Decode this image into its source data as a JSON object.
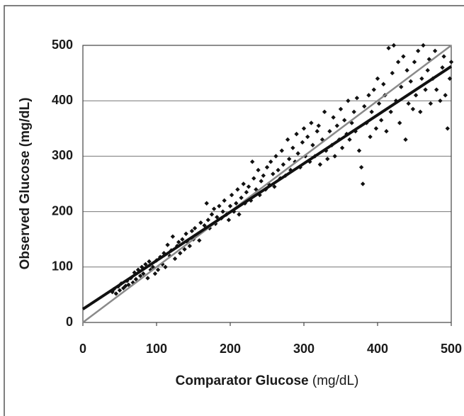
{
  "chart_data": {
    "type": "scatter",
    "xlabel": "Comparator Glucose",
    "xlabel_unit": "(mg/dL)",
    "ylabel": "Observed Glucose (mg/dL)",
    "xlim": [
      0,
      500
    ],
    "ylim": [
      0,
      500
    ],
    "xticks": [
      0,
      100,
      200,
      300,
      400,
      500
    ],
    "yticks": [
      0,
      100,
      200,
      300,
      400,
      500
    ],
    "grid": true,
    "series": [
      {
        "color": "#111111",
        "x": [
          40,
          42,
          45,
          48,
          50,
          52,
          55,
          58,
          60,
          62,
          65,
          68,
          70,
          72,
          75,
          78,
          80,
          82,
          85,
          88,
          90,
          92,
          95,
          98,
          100,
          102,
          105,
          108,
          110,
          112,
          115,
          118,
          120,
          122,
          125,
          128,
          130,
          132,
          135,
          138,
          140,
          142,
          145,
          148,
          150,
          152,
          155,
          158,
          160,
          162,
          165,
          168,
          170,
          172,
          175,
          178,
          180,
          182,
          185,
          188,
          190,
          192,
          195,
          198,
          200,
          202,
          205,
          208,
          210,
          212,
          215,
          218,
          220,
          222,
          225,
          228,
          230,
          232,
          235,
          238,
          240,
          242,
          245,
          248,
          250,
          252,
          255,
          258,
          260,
          262,
          265,
          268,
          270,
          272,
          275,
          278,
          280,
          282,
          285,
          288,
          290,
          292,
          295,
          298,
          300,
          302,
          305,
          308,
          310,
          312,
          315,
          318,
          320,
          322,
          325,
          328,
          330,
          332,
          335,
          338,
          340,
          342,
          345,
          348,
          350,
          352,
          355,
          358,
          360,
          362,
          365,
          368,
          370,
          372,
          375,
          378,
          380,
          382,
          385,
          388,
          390,
          392,
          395,
          398,
          400,
          402,
          405,
          408,
          410,
          412,
          415,
          418,
          420,
          422,
          425,
          428,
          430,
          432,
          435,
          438,
          440,
          442,
          445,
          448,
          450,
          452,
          455,
          458,
          460,
          462,
          465,
          468,
          470,
          472,
          475,
          478,
          480,
          485,
          488,
          490,
          492,
          495,
          498,
          500
        ],
        "values": [
          55,
          60,
          52,
          65,
          58,
          70,
          62,
          66,
          75,
          68,
          80,
          72,
          90,
          78,
          95,
          84,
          100,
          88,
          105,
          80,
          110,
          95,
          100,
          88,
          112,
          95,
          118,
          105,
          125,
          100,
          140,
          120,
          130,
          155,
          115,
          138,
          145,
          125,
          150,
          132,
          160,
          145,
          138,
          165,
          150,
          170,
          158,
          148,
          180,
          165,
          175,
          215,
          185,
          170,
          195,
          205,
          178,
          190,
          210,
          188,
          200,
          220,
          195,
          185,
          210,
          230,
          200,
          215,
          240,
          195,
          225,
          250,
          215,
          235,
          245,
          220,
          290,
          260,
          240,
          275,
          230,
          255,
          265,
          240,
          280,
          250,
          290,
          268,
          245,
          300,
          275,
          260,
          310,
          285,
          265,
          330,
          295,
          275,
          315,
          290,
          340,
          305,
          280,
          325,
          350,
          300,
          335,
          290,
          360,
          320,
          300,
          345,
          355,
          285,
          330,
          380,
          310,
          295,
          345,
          320,
          370,
          300,
          355,
          330,
          385,
          315,
          365,
          340,
          400,
          330,
          360,
          380,
          345,
          405,
          310,
          280,
          250,
          390,
          360,
          410,
          335,
          380,
          420,
          350,
          440,
          395,
          365,
          430,
          410,
          345,
          495,
          380,
          450,
          500,
          400,
          470,
          360,
          425,
          480,
          330,
          455,
          395,
          435,
          385,
          470,
          410,
          490,
          380,
          440,
          500,
          420,
          455,
          475,
          395,
          440,
          490,
          420,
          400,
          460,
          480,
          410,
          350,
          440,
          470
        ]
      }
    ],
    "lines": [
      {
        "color": "#8a8a8a",
        "x": [
          0,
          500
        ],
        "values": [
          0,
          500
        ]
      },
      {
        "color": "#111111",
        "x": [
          0,
          500
        ],
        "values": [
          24,
          462
        ]
      }
    ]
  }
}
